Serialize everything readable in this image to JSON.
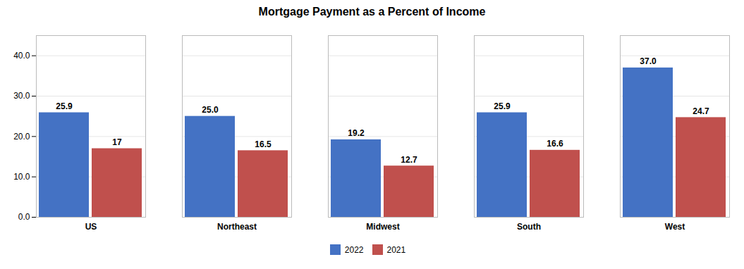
{
  "chart_data": {
    "type": "bar",
    "title": "Mortgage Payment as a Percent of Income",
    "categories": [
      "US",
      "Northeast",
      "Midwest",
      "South",
      "West"
    ],
    "series": [
      {
        "name": "2022",
        "color": "#4472C4",
        "values": [
          25.9,
          25.0,
          19.2,
          25.9,
          37.0
        ],
        "value_labels": [
          "25.9",
          "25.0",
          "19.2",
          "25.9",
          "37.0"
        ]
      },
      {
        "name": "2021",
        "color": "#C0504D",
        "values": [
          17.0,
          16.5,
          12.7,
          16.6,
          24.7
        ],
        "value_labels": [
          "17",
          "16.5",
          "12.7",
          "16.6",
          "24.7"
        ]
      }
    ],
    "ylim": [
      0,
      45
    ],
    "yticks": [
      {
        "value": 0,
        "label": "0.0"
      },
      {
        "value": 10,
        "label": "10.0"
      },
      {
        "value": 20,
        "label": "20.0"
      },
      {
        "value": 30,
        "label": "30.0"
      },
      {
        "value": 40,
        "label": "40.0"
      }
    ],
    "grid": true,
    "legend": "bottom",
    "data_labels": true
  }
}
